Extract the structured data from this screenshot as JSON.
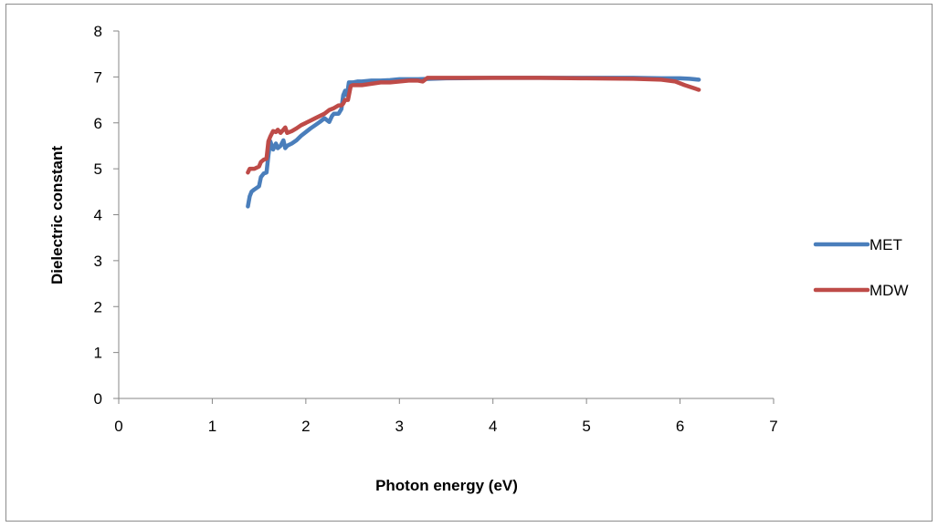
{
  "chart_data": {
    "type": "line",
    "title": "",
    "xlabel": "Photon energy (eV)",
    "ylabel": "Dielectric constant",
    "xlim": [
      0,
      7
    ],
    "ylim": [
      0,
      8
    ],
    "xticks": [
      "0",
      "1",
      "2",
      "3",
      "4",
      "5",
      "6",
      "7"
    ],
    "yticks": [
      "0",
      "1",
      "2",
      "3",
      "4",
      "5",
      "6",
      "7",
      "8"
    ],
    "grid": false,
    "legend_position": "right",
    "series": [
      {
        "name": "MET",
        "color": "#4a7ebb",
        "x": [
          1.38,
          1.4,
          1.42,
          1.45,
          1.5,
          1.52,
          1.55,
          1.58,
          1.6,
          1.62,
          1.65,
          1.68,
          1.7,
          1.73,
          1.76,
          1.78,
          1.8,
          1.85,
          1.9,
          1.95,
          2.0,
          2.05,
          2.1,
          2.15,
          2.2,
          2.25,
          2.28,
          2.3,
          2.35,
          2.38,
          2.4,
          2.42,
          2.44,
          2.46,
          2.48,
          2.5,
          2.55,
          2.6,
          2.7,
          2.8,
          2.9,
          3.0,
          3.2,
          3.5,
          4.0,
          4.5,
          5.0,
          5.5,
          5.8,
          6.0,
          6.1,
          6.2
        ],
        "y": [
          4.18,
          4.4,
          4.5,
          4.55,
          4.62,
          4.82,
          4.9,
          4.92,
          5.3,
          5.6,
          5.42,
          5.55,
          5.45,
          5.5,
          5.62,
          5.45,
          5.5,
          5.55,
          5.62,
          5.72,
          5.8,
          5.88,
          5.95,
          6.02,
          6.1,
          6.02,
          6.15,
          6.2,
          6.2,
          6.3,
          6.6,
          6.7,
          6.6,
          6.88,
          6.88,
          6.88,
          6.9,
          6.9,
          6.92,
          6.92,
          6.93,
          6.95,
          6.95,
          6.97,
          6.98,
          6.98,
          6.98,
          6.98,
          6.97,
          6.97,
          6.96,
          6.94
        ]
      },
      {
        "name": "MDW",
        "color": "#be4b48",
        "x": [
          1.38,
          1.4,
          1.45,
          1.5,
          1.52,
          1.55,
          1.58,
          1.6,
          1.62,
          1.65,
          1.68,
          1.7,
          1.73,
          1.76,
          1.78,
          1.8,
          1.85,
          1.9,
          1.95,
          2.0,
          2.05,
          2.1,
          2.15,
          2.2,
          2.25,
          2.3,
          2.35,
          2.38,
          2.4,
          2.42,
          2.45,
          2.48,
          2.5,
          2.55,
          2.6,
          2.7,
          2.8,
          2.9,
          3.0,
          3.1,
          3.2,
          3.25,
          3.3,
          3.5,
          4.0,
          4.5,
          5.0,
          5.5,
          5.8,
          5.95,
          6.05,
          6.2
        ],
        "y": [
          4.92,
          5.0,
          5.0,
          5.05,
          5.15,
          5.2,
          5.22,
          5.6,
          5.7,
          5.82,
          5.8,
          5.85,
          5.78,
          5.85,
          5.9,
          5.78,
          5.82,
          5.88,
          5.95,
          6.0,
          6.05,
          6.1,
          6.15,
          6.2,
          6.28,
          6.32,
          6.38,
          6.38,
          6.42,
          6.5,
          6.5,
          6.8,
          6.82,
          6.82,
          6.82,
          6.85,
          6.88,
          6.88,
          6.9,
          6.92,
          6.92,
          6.9,
          6.98,
          6.98,
          6.98,
          6.98,
          6.97,
          6.96,
          6.94,
          6.9,
          6.82,
          6.72
        ]
      }
    ]
  }
}
